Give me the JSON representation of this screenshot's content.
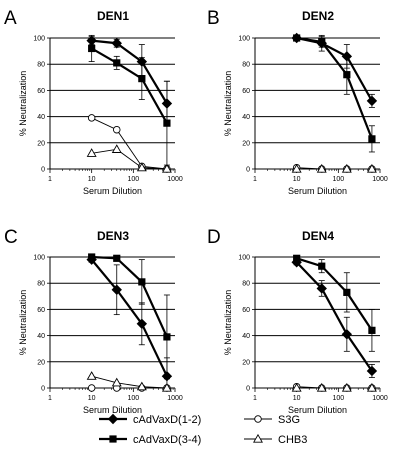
{
  "chart_data": [
    {
      "type": "line",
      "panel_letter": "A",
      "title": "DEN1",
      "xlabel": "Serum Dilution",
      "ylabel": "% Neutralization",
      "x_scale": "log",
      "xlim": [
        1,
        1000
      ],
      "ylim": [
        0,
        100
      ],
      "xticks": [
        "1",
        "10",
        "100",
        "1000"
      ],
      "yticks": [
        "0",
        "20",
        "40",
        "60",
        "80",
        "100"
      ],
      "grid": "horizontal",
      "series": [
        {
          "name": "cAdVaxD(1-2)",
          "marker": "diamond",
          "x": [
            10,
            40,
            160,
            640
          ],
          "y": [
            98,
            96,
            82,
            50
          ],
          "err": [
            3,
            3,
            13,
            17
          ]
        },
        {
          "name": "cAdVaxD(3-4)",
          "marker": "square",
          "x": [
            10,
            40,
            160,
            640
          ],
          "y": [
            92,
            81,
            69,
            35
          ],
          "err": [
            10,
            5,
            16,
            32
          ]
        },
        {
          "name": "S3G",
          "marker": "circle",
          "x": [
            10,
            40,
            160,
            640
          ],
          "y": [
            39,
            30,
            2,
            0
          ],
          "err": [
            0,
            0,
            0,
            0
          ]
        },
        {
          "name": "CHB3",
          "marker": "triangle",
          "x": [
            10,
            40,
            160,
            640
          ],
          "y": [
            12,
            15,
            1,
            0
          ],
          "err": [
            0,
            0,
            0,
            0
          ]
        }
      ]
    },
    {
      "type": "line",
      "panel_letter": "B",
      "title": "DEN2",
      "xlabel": "Serum Dilution",
      "ylabel": "% Neutralization",
      "x_scale": "log",
      "xlim": [
        1,
        1000
      ],
      "ylim": [
        0,
        100
      ],
      "xticks": [
        "1",
        "10",
        "100",
        "1000"
      ],
      "yticks": [
        "0",
        "20",
        "40",
        "60",
        "80",
        "100"
      ],
      "grid": "horizontal",
      "series": [
        {
          "name": "cAdVaxD(1-2)",
          "marker": "diamond",
          "x": [
            10,
            40,
            160,
            640
          ],
          "y": [
            100,
            96,
            86,
            52
          ],
          "err": [
            0,
            6,
            9,
            5
          ]
        },
        {
          "name": "cAdVaxD(3-4)",
          "marker": "square",
          "x": [
            10,
            40,
            160,
            640
          ],
          "y": [
            100,
            97,
            72,
            23
          ],
          "err": [
            0,
            4,
            15,
            10
          ]
        },
        {
          "name": "S3G",
          "marker": "circle",
          "x": [
            10,
            40,
            160,
            640
          ],
          "y": [
            1,
            0,
            0,
            0
          ],
          "err": [
            0,
            0,
            0,
            0
          ]
        },
        {
          "name": "CHB3",
          "marker": "triangle",
          "x": [
            10,
            40,
            160,
            640
          ],
          "y": [
            0,
            0,
            0,
            0
          ],
          "err": [
            0,
            0,
            0,
            0
          ]
        }
      ]
    },
    {
      "type": "line",
      "panel_letter": "C",
      "title": "DEN3",
      "xlabel": "Serum Dilution",
      "ylabel": "% Neutralization",
      "x_scale": "log",
      "xlim": [
        1,
        1000
      ],
      "ylim": [
        0,
        100
      ],
      "xticks": [
        "1",
        "10",
        "100",
        "1000"
      ],
      "yticks": [
        "0",
        "20",
        "40",
        "60",
        "80",
        "100"
      ],
      "grid": "horizontal",
      "series": [
        {
          "name": "cAdVaxD(1-2)",
          "marker": "diamond",
          "x": [
            10,
            40,
            160,
            640
          ],
          "y": [
            98,
            75,
            49,
            9
          ],
          "err": [
            2,
            19,
            16,
            14
          ]
        },
        {
          "name": "cAdVaxD(3-4)",
          "marker": "square",
          "x": [
            10,
            40,
            160,
            640
          ],
          "y": [
            100,
            99,
            81,
            39
          ],
          "err": [
            0,
            0,
            17,
            32
          ]
        },
        {
          "name": "S3G",
          "marker": "circle",
          "x": [
            10,
            40,
            160,
            640
          ],
          "y": [
            0,
            0,
            0,
            0
          ],
          "err": [
            0,
            0,
            0,
            0
          ]
        },
        {
          "name": "CHB3",
          "marker": "triangle",
          "x": [
            10,
            40,
            160,
            640
          ],
          "y": [
            9,
            4,
            1,
            0
          ],
          "err": [
            0,
            0,
            0,
            0
          ]
        }
      ]
    },
    {
      "type": "line",
      "panel_letter": "D",
      "title": "DEN4",
      "xlabel": "Serum Dilution",
      "ylabel": "% Neutralization",
      "x_scale": "log",
      "xlim": [
        1,
        1000
      ],
      "ylim": [
        0,
        100
      ],
      "xticks": [
        "1",
        "10",
        "100",
        "1000"
      ],
      "yticks": [
        "0",
        "20",
        "40",
        "60",
        "80",
        "100"
      ],
      "grid": "horizontal",
      "series": [
        {
          "name": "cAdVaxD(1-2)",
          "marker": "diamond",
          "x": [
            10,
            40,
            160,
            640
          ],
          "y": [
            96,
            76,
            41,
            13
          ],
          "err": [
            2,
            6,
            13,
            5
          ]
        },
        {
          "name": "cAdVaxD(3-4)",
          "marker": "square",
          "x": [
            10,
            40,
            160,
            640
          ],
          "y": [
            99,
            93,
            73,
            44
          ],
          "err": [
            2,
            5,
            15,
            16
          ]
        },
        {
          "name": "S3G",
          "marker": "circle",
          "x": [
            10,
            40,
            160,
            640
          ],
          "y": [
            1,
            0,
            0,
            0
          ],
          "err": [
            0,
            0,
            0,
            0
          ]
        },
        {
          "name": "CHB3",
          "marker": "triangle",
          "x": [
            10,
            40,
            160,
            640
          ],
          "y": [
            0,
            0,
            0,
            0
          ],
          "err": [
            0,
            0,
            0,
            0
          ]
        }
      ]
    }
  ],
  "legend": {
    "items": [
      {
        "name": "cAdVaxD(1-2)",
        "marker": "diamond"
      },
      {
        "name": "S3G",
        "marker": "circle"
      },
      {
        "name": "cAdVaxD(3-4)",
        "marker": "square"
      },
      {
        "name": "CHB3",
        "marker": "triangle"
      }
    ]
  }
}
